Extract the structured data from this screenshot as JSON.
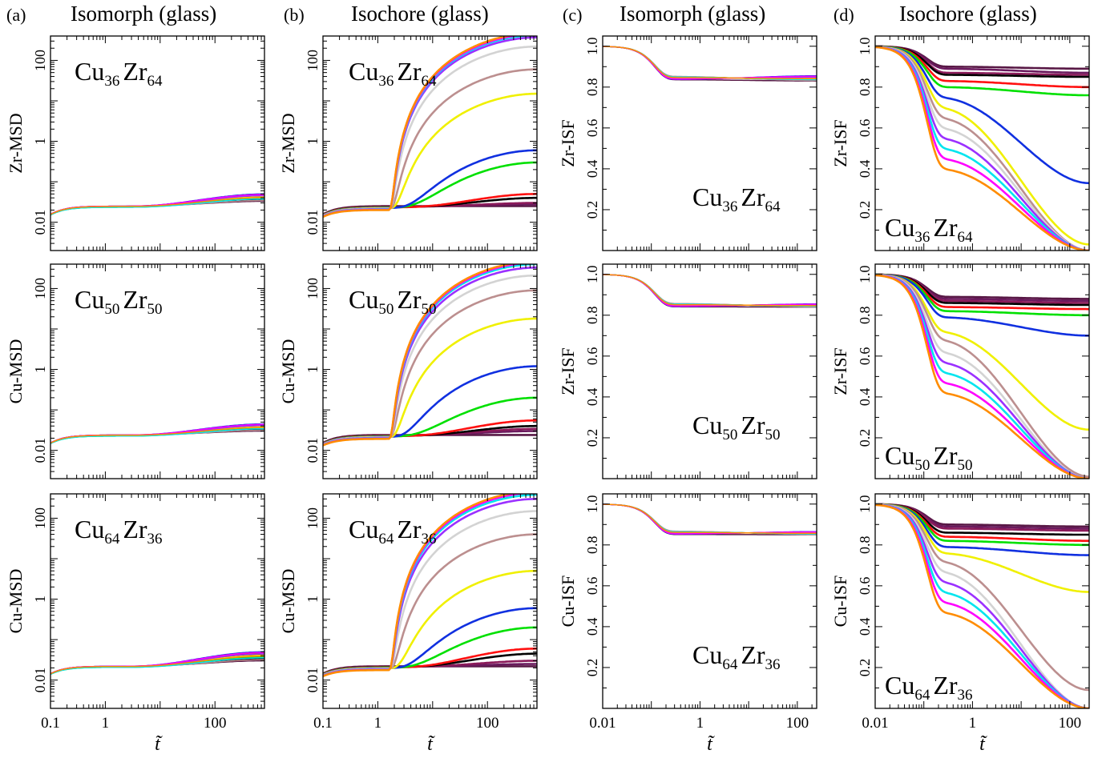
{
  "figure": {
    "columns": [
      {
        "letter": "(a)",
        "title": "Isomorph (glass)"
      },
      {
        "letter": "(b)",
        "title": "Isochore (glass)"
      },
      {
        "letter": "(c)",
        "title": "Isomorph (glass)"
      },
      {
        "letter": "(d)",
        "title": "Isochore (glass)"
      }
    ],
    "xlabel": "t̃",
    "series_colors": [
      "#581845",
      "#6b1a5e",
      "#8b1a5a",
      "#000000",
      "#ff1010",
      "#00e000",
      "#1030e0",
      "#f0f000",
      "#bc8f8f",
      "#d3d3d3",
      "#9b30ff",
      "#00e5ee",
      "#ff00ff",
      "#ff8c00"
    ],
    "isomorph_colors": [
      "#581845",
      "#8b1a5a",
      "#000000",
      "#ff1010",
      "#00e000",
      "#1030e0",
      "#f0f000",
      "#bc8f8f",
      "#9b30ff",
      "#00e5ee",
      "#ff00ff",
      "#ff8c00"
    ]
  },
  "chart_data": [
    {
      "panel": "a1",
      "type": "line",
      "column": "(a)",
      "title": "Isomorph (glass)",
      "composition": {
        "a": "Cu",
        "na": "36",
        "b": "Zr",
        "nb": "64"
      },
      "ylabel": "Zr-MSD",
      "xlabel": "",
      "xscale": "log",
      "yscale": "log",
      "xlim": [
        0.1,
        800
      ],
      "ylim": [
        0.002,
        400
      ],
      "x_ticks": [],
      "y_ticks": [
        "0.01",
        "1",
        "100"
      ],
      "plateau": 0.025,
      "late_values": [
        0.033,
        0.05
      ]
    },
    {
      "panel": "b1",
      "type": "line",
      "column": "(b)",
      "title": "Isochore (glass)",
      "composition": {
        "a": "Cu",
        "na": "36",
        "b": "Zr",
        "nb": "64"
      },
      "ylabel": "Zr-MSD",
      "xlabel": "",
      "xscale": "log",
      "yscale": "log",
      "xlim": [
        0.1,
        800
      ],
      "ylim": [
        0.002,
        400
      ],
      "x_ticks": [],
      "y_ticks": [
        "0.01",
        "1",
        "100"
      ],
      "plateau": 0.025,
      "late_values": [
        0.022,
        0.028,
        0.03,
        0.04,
        0.05,
        0.3,
        0.6,
        15,
        60,
        220,
        370,
        420,
        450,
        480
      ]
    },
    {
      "panel": "c1",
      "type": "line",
      "column": "(c)",
      "title": "Isomorph (glass)",
      "composition": {
        "a": "Cu",
        "na": "36",
        "b": "Zr",
        "nb": "64"
      },
      "ylabel": "Zr-ISF",
      "xlabel": "",
      "xscale": "log",
      "xlim": [
        0.01,
        250
      ],
      "ylim": [
        0,
        1.05
      ],
      "x_ticks": [],
      "y_ticks": [
        "0.2",
        "0.4",
        "0.6",
        "0.8",
        "1.0"
      ],
      "plateau": 0.845,
      "late_values": [
        0.83,
        0.855
      ]
    },
    {
      "panel": "d1",
      "type": "line",
      "column": "(d)",
      "title": "Isochore (glass)",
      "composition": {
        "a": "Cu",
        "na": "36",
        "b": "Zr",
        "nb": "64"
      },
      "ylabel": "Zr-ISF",
      "xlabel": "",
      "xscale": "log",
      "xlim": [
        0.01,
        250
      ],
      "ylim": [
        0,
        1.05
      ],
      "x_ticks": [],
      "y_ticks": [
        "0.2",
        "0.4",
        "0.6",
        "0.8",
        "1.0"
      ],
      "plateau_values": [
        0.9,
        0.89,
        0.87,
        0.86,
        0.83,
        0.8,
        0.75,
        0.7,
        0.65,
        0.6,
        0.55,
        0.5,
        0.45,
        0.4
      ],
      "late_values": [
        0.89,
        0.87,
        0.86,
        0.85,
        0.8,
        0.76,
        0.33,
        0.03,
        0.0,
        0.0,
        0.0,
        0.0,
        0.0,
        0.0
      ]
    },
    {
      "panel": "a2",
      "type": "line",
      "column": "(a)",
      "title": "Isomorph (glass)",
      "composition": {
        "a": "Cu",
        "na": "50",
        "b": "Zr",
        "nb": "50"
      },
      "ylabel": "Cu-MSD",
      "xlabel": "",
      "xscale": "log",
      "yscale": "log",
      "xlim": [
        0.1,
        800
      ],
      "ylim": [
        0.002,
        400
      ],
      "x_ticks": [],
      "y_ticks": [
        "0.01",
        "1",
        "100"
      ],
      "plateau": 0.024,
      "late_values": [
        0.03,
        0.045
      ]
    },
    {
      "panel": "b2",
      "type": "line",
      "column": "(b)",
      "title": "Isochore (glass)",
      "composition": {
        "a": "Cu",
        "na": "50",
        "b": "Zr",
        "nb": "50"
      },
      "ylabel": "Cu-MSD",
      "xlabel": "",
      "xscale": "log",
      "yscale": "log",
      "xlim": [
        0.1,
        800
      ],
      "ylim": [
        0.002,
        400
      ],
      "x_ticks": [],
      "y_ticks": [
        "0.01",
        "1",
        "100"
      ],
      "plateau": 0.024,
      "late_values": [
        0.024,
        0.03,
        0.034,
        0.04,
        0.055,
        0.2,
        1.2,
        18,
        90,
        210,
        330,
        400,
        440,
        470
      ]
    },
    {
      "panel": "c2",
      "type": "line",
      "column": "(c)",
      "title": "Isomorph (glass)",
      "composition": {
        "a": "Cu",
        "na": "50",
        "b": "Zr",
        "nb": "50"
      },
      "ylabel": "Zr-ISF",
      "xlabel": "",
      "xscale": "log",
      "xlim": [
        0.01,
        250
      ],
      "ylim": [
        0,
        1.05
      ],
      "x_ticks": [],
      "y_ticks": [
        "0.2",
        "0.4",
        "0.6",
        "0.8",
        "1.0"
      ],
      "plateau": 0.85,
      "late_values": [
        0.84,
        0.855
      ]
    },
    {
      "panel": "d2",
      "type": "line",
      "column": "(d)",
      "title": "Isochore (glass)",
      "composition": {
        "a": "Cu",
        "na": "50",
        "b": "Zr",
        "nb": "50"
      },
      "ylabel": "Zr-ISF",
      "xlabel": "",
      "xscale": "log",
      "xlim": [
        0.01,
        250
      ],
      "ylim": [
        0,
        1.05
      ],
      "x_ticks": [],
      "y_ticks": [
        "0.2",
        "0.4",
        "0.6",
        "0.8",
        "1.0"
      ],
      "plateau_values": [
        0.89,
        0.88,
        0.87,
        0.86,
        0.84,
        0.82,
        0.79,
        0.72,
        0.68,
        0.62,
        0.57,
        0.52,
        0.47,
        0.42
      ],
      "late_values": [
        0.88,
        0.87,
        0.86,
        0.85,
        0.83,
        0.8,
        0.7,
        0.24,
        0.01,
        0.0,
        0.0,
        0.0,
        0.0,
        0.0
      ]
    },
    {
      "panel": "a3",
      "type": "line",
      "column": "(a)",
      "title": "Isomorph (glass)",
      "composition": {
        "a": "Cu",
        "na": "64",
        "b": "Zr",
        "nb": "36"
      },
      "ylabel": "Cu-MSD",
      "xlabel": "t̃",
      "xscale": "log",
      "yscale": "log",
      "xlim": [
        0.1,
        800
      ],
      "ylim": [
        0.002,
        400
      ],
      "x_ticks": [
        "0.1",
        "1",
        "100"
      ],
      "y_ticks": [
        "0.01",
        "1",
        "100"
      ],
      "plateau": 0.022,
      "late_values": [
        0.03,
        0.05
      ]
    },
    {
      "panel": "b3",
      "type": "line",
      "column": "(b)",
      "title": "Isochore (glass)",
      "composition": {
        "a": "Cu",
        "na": "64",
        "b": "Zr",
        "nb": "36"
      },
      "ylabel": "Cu-MSD",
      "xlabel": "t̃",
      "xscale": "log",
      "yscale": "log",
      "xlim": [
        0.1,
        800
      ],
      "ylim": [
        0.002,
        400
      ],
      "x_ticks": [
        "0.1",
        "1",
        "100"
      ],
      "y_ticks": [
        "0.01",
        "1",
        "100"
      ],
      "plateau": 0.022,
      "late_values": [
        0.02,
        0.025,
        0.03,
        0.045,
        0.06,
        0.2,
        0.6,
        5,
        40,
        150,
        300,
        380,
        430,
        470
      ]
    },
    {
      "panel": "c3",
      "type": "line",
      "column": "(c)",
      "title": "Isomorph (glass)",
      "composition": {
        "a": "Cu",
        "na": "64",
        "b": "Zr",
        "nb": "36"
      },
      "ylabel": "Cu-ISF",
      "xlabel": "t̃",
      "xscale": "log",
      "xlim": [
        0.01,
        250
      ],
      "ylim": [
        0,
        1.05
      ],
      "x_ticks": [
        "0.01",
        "1",
        "100"
      ],
      "y_ticks": [
        "0.2",
        "0.4",
        "0.6",
        "0.8",
        "1.0"
      ],
      "plateau": 0.86,
      "late_values": [
        0.85,
        0.865
      ]
    },
    {
      "panel": "d3",
      "type": "line",
      "column": "(d)",
      "title": "Isochore (glass)",
      "composition": {
        "a": "Cu",
        "na": "64",
        "b": "Zr",
        "nb": "36"
      },
      "ylabel": "Cu-ISF",
      "xlabel": "t̃",
      "xscale": "log",
      "xlim": [
        0.01,
        250
      ],
      "ylim": [
        0,
        1.05
      ],
      "x_ticks": [
        "0.01",
        "1",
        "100"
      ],
      "y_ticks": [
        "0.2",
        "0.4",
        "0.6",
        "0.8",
        "1.0"
      ],
      "plateau_values": [
        0.9,
        0.89,
        0.88,
        0.86,
        0.84,
        0.82,
        0.79,
        0.76,
        0.72,
        0.67,
        0.62,
        0.57,
        0.52,
        0.47
      ],
      "late_values": [
        0.89,
        0.88,
        0.87,
        0.85,
        0.82,
        0.8,
        0.75,
        0.57,
        0.09,
        0.0,
        0.0,
        0.0,
        0.0,
        0.0
      ]
    }
  ]
}
